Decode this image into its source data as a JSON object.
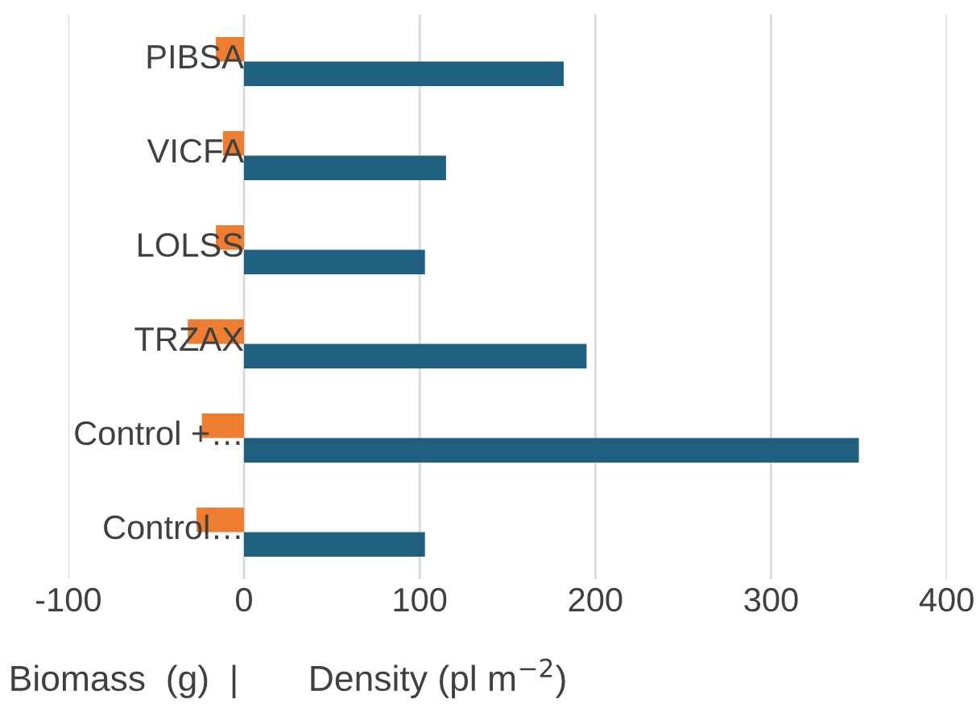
{
  "chart_data": {
    "type": "bar",
    "orientation": "horizontal",
    "xlabel": "Biomass  (g)  |       Density (pl m$^{−2}$)",
    "categories": [
      "PIBSA",
      "VICFA",
      "LOLSS",
      "TRZAX",
      "Control +…",
      "Control…"
    ],
    "series": [
      {
        "color": "#ed7d31",
        "values": [
          -16,
          -12,
          -16,
          -32,
          -24,
          -27
        ]
      },
      {
        "color": "#1f5f80",
        "values": [
          182,
          115,
          103,
          195,
          350,
          103
        ]
      }
    ],
    "xlim": [
      -100,
      400
    ],
    "xticks": [
      -100,
      0,
      100,
      200,
      300,
      400
    ],
    "grid": "x",
    "legend": false
  }
}
